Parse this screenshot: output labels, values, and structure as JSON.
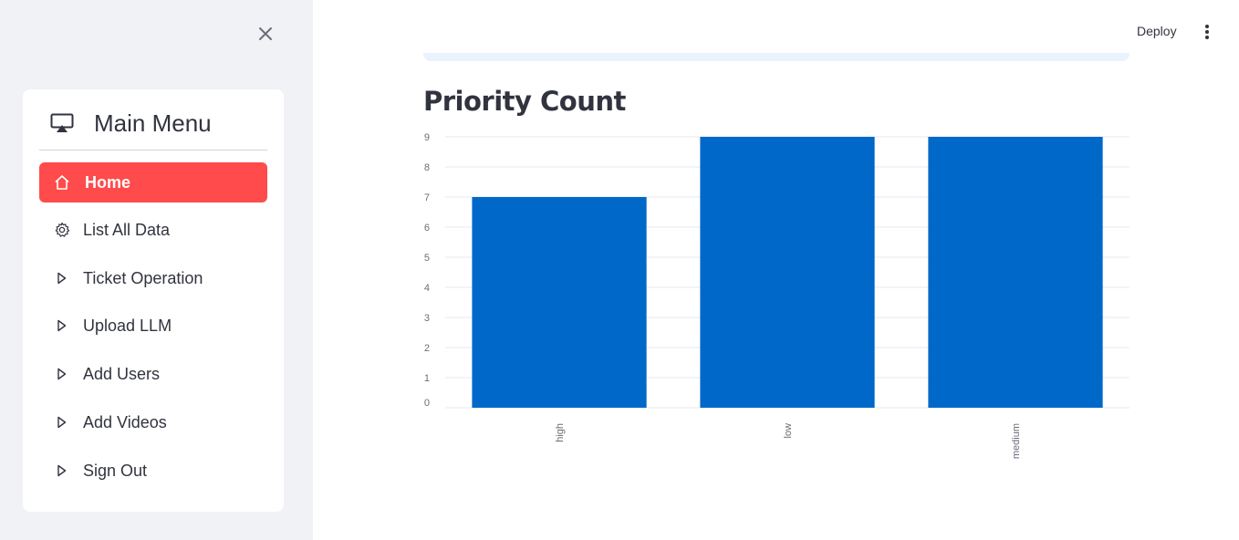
{
  "header": {
    "deploy_label": "Deploy"
  },
  "sidebar": {
    "menu_title": "Main Menu",
    "items": [
      {
        "label": "Home",
        "icon": "house-icon",
        "active": true
      },
      {
        "label": "List All Data",
        "icon": "gear-icon",
        "active": false
      },
      {
        "label": "Ticket Operation",
        "icon": "caret-right-icon",
        "active": false
      },
      {
        "label": "Upload LLM",
        "icon": "caret-right-icon",
        "active": false
      },
      {
        "label": "Add Users",
        "icon": "caret-right-icon",
        "active": false
      },
      {
        "label": "Add Videos",
        "icon": "caret-right-icon",
        "active": false
      },
      {
        "label": "Sign Out",
        "icon": "caret-right-icon",
        "active": false
      }
    ]
  },
  "colors": {
    "accent": "#ff4b4b",
    "bar": "#0068c9",
    "sidebar_bg": "#f0f2f6"
  },
  "main": {
    "title": "Priority Count"
  },
  "chart_data": {
    "type": "bar",
    "title": "Priority Count",
    "categories": [
      "high",
      "low",
      "medium"
    ],
    "values": [
      7,
      9,
      9
    ],
    "ylim": [
      0,
      9
    ],
    "yticks": [
      0,
      1,
      2,
      3,
      4,
      5,
      6,
      7,
      8,
      9
    ],
    "xlabel": "",
    "ylabel": "",
    "grid": true,
    "color": "#0068c9"
  }
}
